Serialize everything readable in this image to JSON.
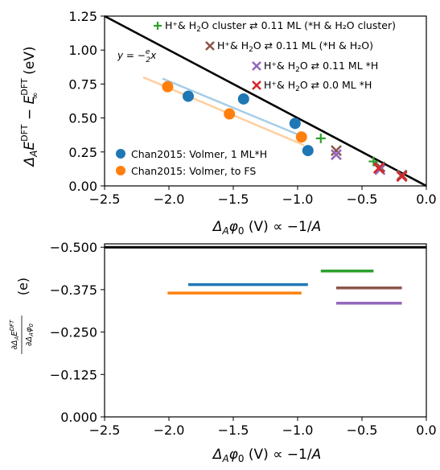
{
  "colors": {
    "blue": "#1f77b4",
    "orange": "#ff7f0e",
    "green": "#2ca02c",
    "brown": "#8c564b",
    "purple": "#9467bd",
    "red": "#d62728",
    "black": "#000000",
    "light_blue": "#a6cde8",
    "light_orange": "#ffcf9e"
  },
  "chart_data": [
    {
      "type": "scatter",
      "xlabel": "ΔAφ0 (V) ∝ −1/A",
      "ylabel": "ΔAE^DFT − E∞^DFT (eV)",
      "xlim": [
        -2.5,
        0.0
      ],
      "ylim": [
        0.0,
        1.25
      ],
      "xticks": [
        -2.5,
        -2.0,
        -1.5,
        -1.0,
        -0.5,
        0.0
      ],
      "xtick_labels": [
        "−2.5",
        "−2.0",
        "−1.5",
        "−1.0",
        "−0.5",
        "0.0"
      ],
      "yticks": [
        0.0,
        0.25,
        0.5,
        0.75,
        1.0,
        1.25
      ],
      "ytick_labels": [
        "0.00",
        "0.25",
        "0.50",
        "0.75",
        "1.00",
        "1.25"
      ],
      "reference_line": {
        "label": "y = −(e/2)x",
        "x": [
          -2.5,
          0.0
        ],
        "y": [
          1.25,
          0.0
        ]
      },
      "fit_lines": [
        {
          "series": "blue",
          "x": [
            -2.05,
            -0.95
          ],
          "y": [
            0.79,
            0.36
          ]
        },
        {
          "series": "orange",
          "x": [
            -2.2,
            -0.95
          ],
          "y": [
            0.8,
            0.3
          ]
        }
      ],
      "series": [
        {
          "name": "Chan2015: Volmer, 1 ML*H",
          "marker": "circle",
          "color_key": "blue",
          "x": [
            -1.85,
            -1.42,
            -1.02,
            -0.92
          ],
          "y": [
            0.66,
            0.64,
            0.46,
            0.26
          ]
        },
        {
          "name": "Chan2015: Volmer, to FS",
          "marker": "circle",
          "color_key": "orange",
          "x": [
            -2.01,
            -1.53,
            -0.97
          ],
          "y": [
            0.73,
            0.53,
            0.36
          ]
        },
        {
          "name": "H⁺& H₂O cluster ⇄ 0.11 ML (*H & H₂O cluster)",
          "marker": "plus",
          "color_key": "green",
          "x": [
            -0.82,
            -0.41
          ],
          "y": [
            0.35,
            0.18
          ]
        },
        {
          "name": "H⁺& H₂O ⇄ 0.11 ML (*H & H₂O)",
          "marker": "x",
          "color_key": "brown",
          "x": [
            -0.7,
            -0.36,
            -0.19
          ],
          "y": [
            0.26,
            0.14,
            0.08
          ]
        },
        {
          "name": "H⁺& H₂O ⇄ 0.11 ML *H",
          "marker": "x",
          "color_key": "purple",
          "x": [
            -0.7,
            -0.36,
            -0.19
          ],
          "y": [
            0.23,
            0.12,
            0.07
          ]
        },
        {
          "name": "H⁺& H₂O ⇄ 0.0 ML *H",
          "marker": "x",
          "color_key": "red",
          "x": [
            -0.37,
            -0.19
          ],
          "y": [
            0.13,
            0.07
          ]
        }
      ],
      "legend_top_right": [
        {
          "marker": "plus",
          "color_key": "green",
          "prefix": "H⁺& H",
          "sub": "2",
          "mid": "O cluster",
          "arrow": "⇄",
          "suffix": "0.11 ML (*H & H₂O cluster)"
        },
        {
          "marker": "x",
          "color_key": "brown",
          "prefix": "H⁺& H",
          "sub": "2",
          "mid": "O",
          "arrow": "⇄",
          "suffix": "0.11 ML (*H & H₂O)"
        },
        {
          "marker": "x",
          "color_key": "purple",
          "prefix": "H⁺& H",
          "sub": "2",
          "mid": "O",
          "arrow": "⇄",
          "suffix": "0.11 ML *H"
        },
        {
          "marker": "x",
          "color_key": "red",
          "prefix": "H⁺& H",
          "sub": "2",
          "mid": "O",
          "arrow": "⇄",
          "suffix": "0.0 ML *H"
        }
      ],
      "legend_bottom_left": [
        {
          "marker": "circle",
          "color_key": "blue",
          "label": "Chan2015: Volmer, 1 ML*H"
        },
        {
          "marker": "circle",
          "color_key": "orange",
          "label": "Chan2015: Volmer, to FS"
        }
      ]
    },
    {
      "type": "line",
      "xlabel": "ΔAφ0 (V) ∝ −1/A",
      "ylabel": "∂ΔAE^DFT / ∂ΔAφ0 (e)",
      "xlim": [
        -2.5,
        0.0
      ],
      "ylim": [
        0.0,
        -0.51
      ],
      "xticks": [
        -2.5,
        -2.0,
        -1.5,
        -1.0,
        -0.5,
        0.0
      ],
      "xtick_labels": [
        "−2.5",
        "−2.0",
        "−1.5",
        "−1.0",
        "−0.5",
        "0.0"
      ],
      "yticks": [
        0.0,
        -0.125,
        -0.25,
        -0.375,
        -0.5
      ],
      "ytick_labels": [
        "0.000",
        "−0.125",
        "−0.250",
        "−0.375",
        "−0.500"
      ],
      "segments": [
        {
          "color_key": "black",
          "x": [
            -2.5,
            0.0
          ],
          "y": -0.5
        },
        {
          "color_key": "blue",
          "x": [
            -1.85,
            -0.92
          ],
          "y": -0.39
        },
        {
          "color_key": "orange",
          "x": [
            -2.01,
            -0.97
          ],
          "y": -0.365
        },
        {
          "color_key": "green",
          "x": [
            -0.82,
            -0.41
          ],
          "y": -0.43
        },
        {
          "color_key": "brown",
          "x": [
            -0.7,
            -0.19
          ],
          "y": -0.38
        },
        {
          "color_key": "purple",
          "x": [
            -0.7,
            -0.19
          ],
          "y": -0.335
        }
      ]
    }
  ]
}
